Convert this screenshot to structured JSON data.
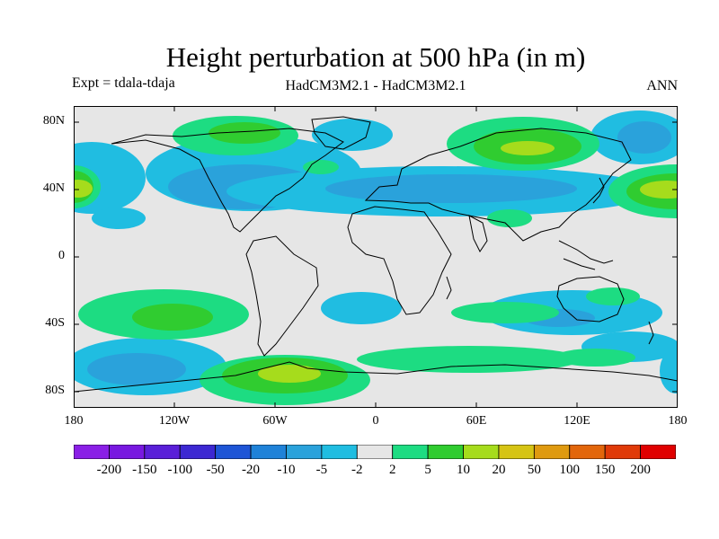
{
  "title": "Height perturbation at 500 hPa (in m)",
  "subtitle_left": "Expt = tdala-tdaja",
  "subtitle_center": "HadCM3M2.1 - HadCM3M2.1",
  "subtitle_right": "ANN",
  "lat_labels": [
    "80N",
    "40N",
    "0",
    "40S",
    "80S"
  ],
  "lon_labels": [
    "180",
    "120W",
    "60W",
    "0",
    "60E",
    "120E",
    "180"
  ],
  "colorbar": {
    "labels": [
      "-200",
      "-150",
      "-100",
      "-50",
      "-20",
      "-10",
      "-5",
      "-2",
      "2",
      "5",
      "10",
      "20",
      "50",
      "100",
      "150",
      "200"
    ],
    "colors": [
      "#8a1fe6",
      "#7818e0",
      "#5a1fd8",
      "#3c28d2",
      "#1e55d6",
      "#1f82d8",
      "#2aa2db",
      "#20bde1",
      "#e6e6e6",
      "#1ddc82",
      "#30cc30",
      "#a6dc1c",
      "#d6c414",
      "#df9a10",
      "#e2660b",
      "#e03a08",
      "#e00000"
    ]
  }
}
